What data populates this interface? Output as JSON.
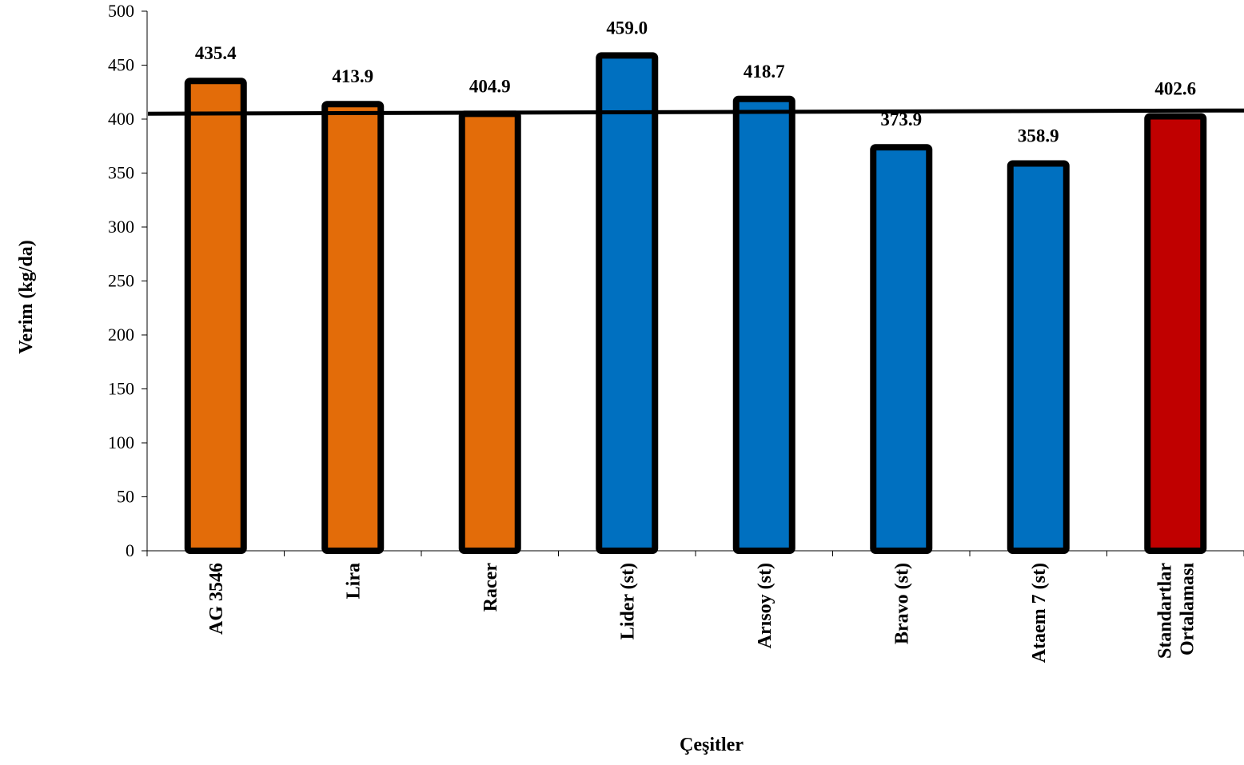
{
  "chart_data": {
    "type": "bar",
    "title": "",
    "xlabel": "Çeşitler",
    "ylabel": "Verim (kg/da)",
    "ylim": [
      0,
      500
    ],
    "yticks": [
      0,
      50,
      100,
      150,
      200,
      250,
      300,
      350,
      400,
      450,
      500
    ],
    "grid": false,
    "legend": "none",
    "categories": [
      [
        "AG 3546"
      ],
      [
        "Lira"
      ],
      [
        "Racer"
      ],
      [
        "Lider (st)"
      ],
      [
        "Arısoy (st)"
      ],
      [
        "Bravo (st)"
      ],
      [
        "Ataem 7 (st)"
      ],
      [
        "Standartlar",
        "Ortalaması"
      ]
    ],
    "values": [
      435.4,
      413.9,
      404.9,
      459.0,
      418.7,
      373.9,
      358.9,
      402.6
    ],
    "data_labels": [
      "435.4",
      "413.9",
      "404.9",
      "459.0",
      "418.7",
      "373.9",
      "358.9",
      "402.6"
    ],
    "bar_colors": [
      "#e36c09",
      "#e36c09",
      "#e36c09",
      "#0070c0",
      "#0070c0",
      "#0070c0",
      "#0070c0",
      "#c00000"
    ],
    "bar_outline_color": "#000000",
    "reference_line": {
      "y_start": 405,
      "y_end": 408,
      "color": "#000000"
    }
  }
}
